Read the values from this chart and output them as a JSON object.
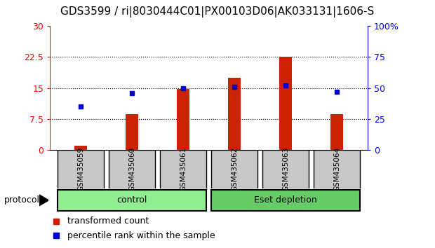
{
  "title": "GDS3599 / ri|8030444C01|PX00103D06|AK033131|1606-S",
  "categories": [
    "GSM435059",
    "GSM435060",
    "GSM435061",
    "GSM435062",
    "GSM435063",
    "GSM435064"
  ],
  "bar_values": [
    1.0,
    8.7,
    14.8,
    17.5,
    22.5,
    8.7
  ],
  "dot_values_pct": [
    35,
    46,
    50,
    51,
    52,
    47
  ],
  "bar_color": "#cc2200",
  "dot_color": "#0000cc",
  "left_ylim": [
    0,
    30
  ],
  "right_ylim": [
    0,
    100
  ],
  "left_yticks": [
    0,
    7.5,
    15,
    22.5,
    30
  ],
  "right_yticks": [
    0,
    25,
    50,
    75,
    100
  ],
  "right_yticklabels": [
    "0",
    "25",
    "50",
    "75",
    "100%"
  ],
  "left_yticklabels": [
    "0",
    "7.5",
    "15",
    "22.5",
    "30"
  ],
  "grid_values": [
    7.5,
    15,
    22.5
  ],
  "groups": [
    {
      "label": "control",
      "start": 0,
      "end": 3,
      "color": "#90ee90"
    },
    {
      "label": "Eset depletion",
      "start": 3,
      "end": 6,
      "color": "#66cc66"
    }
  ],
  "protocol_label": "protocol",
  "legend_items": [
    {
      "label": "transformed count",
      "color": "#cc2200"
    },
    {
      "label": "percentile rank within the sample",
      "color": "#0000cc"
    }
  ],
  "bg_color": "#ffffff",
  "plot_bg": "#ffffff",
  "category_bg": "#c8c8c8",
  "title_fontsize": 11,
  "tick_fontsize": 9,
  "legend_fontsize": 9,
  "bar_width": 0.25
}
